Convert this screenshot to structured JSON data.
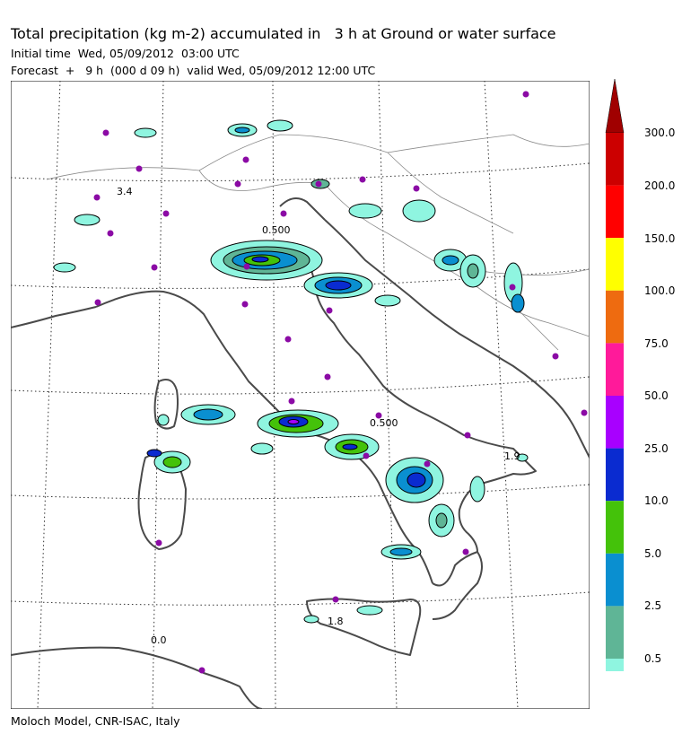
{
  "header": {
    "title": "Total precipitation (kg m-2) accumulated in   3 h at Ground or water surface",
    "initial_time": "Initial time  Wed, 05/09/2012  03:00 UTC",
    "forecast": "Forecast  +   9 h  (000 d 09 h)  valid Wed, 05/09/2012 12:00 UTC"
  },
  "footer": {
    "credit": "Moloch Model, CNR-ISAC, Italy"
  },
  "map": {
    "contour_labels": [
      "3.4",
      "0.500",
      "0.500",
      "1.8",
      "0.0",
      "1.9"
    ],
    "colors": {
      "coast": "#4a4a4a",
      "border": "#888888",
      "city": "#8b0aa5",
      "contour": "#000000"
    }
  },
  "legend": {
    "labels": [
      "300.0",
      "200.0",
      "150.0",
      "100.0",
      "75.0",
      "50.0",
      "25.0",
      "10.0",
      "5.0",
      "2.5",
      "0.5"
    ],
    "colors": [
      "#cc0000",
      "#ff0000",
      "#ffff00",
      "#ee6b10",
      "#ff1a9a",
      "#a800ff",
      "#0a2bd0",
      "#44c20a",
      "#0a8fd0",
      "#5fb596",
      "#8ff5e0"
    ],
    "arrow_color": "#a00000"
  }
}
